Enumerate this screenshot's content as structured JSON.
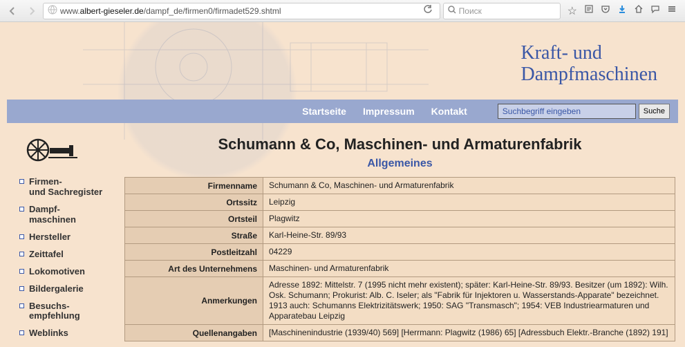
{
  "browser": {
    "url_prefix": "www.",
    "url_domain": "albert-gieseler.de",
    "url_path": "/dampf_de/firmen0/firmadet529.shtml",
    "search_placeholder": "Поиск"
  },
  "site": {
    "title_line1": "Kraft- und",
    "title_line2": "Dampfmaschinen"
  },
  "nav": {
    "items": [
      {
        "label": "Startseite"
      },
      {
        "label": "Impressum"
      },
      {
        "label": "Kontakt"
      }
    ],
    "search_placeholder": "Suchbegriff eingeben",
    "search_button": "Suche"
  },
  "sidebar": {
    "items": [
      {
        "label": "Firmen-und Sachregister"
      },
      {
        "label": "Dampf-maschinen"
      },
      {
        "label": "Hersteller"
      },
      {
        "label": "Zeittafel"
      },
      {
        "label": "Lokomotiven"
      },
      {
        "label": "Bildergalerie"
      },
      {
        "label": "Besuchs-empfehlung"
      },
      {
        "label": "Weblinks"
      }
    ]
  },
  "main": {
    "title": "Schumann & Co, Maschinen- und Armaturenfabrik",
    "subtitle": "Allgemeines",
    "rows": [
      {
        "label": "Firmenname",
        "value": "Schumann & Co, Maschinen- und Armaturenfabrik"
      },
      {
        "label": "Ortssitz",
        "value": "Leipzig"
      },
      {
        "label": "Ortsteil",
        "value": "Plagwitz"
      },
      {
        "label": "Straße",
        "value": "Karl-Heine-Str. 89/93"
      },
      {
        "label": "Postleitzahl",
        "value": "04229"
      },
      {
        "label": "Art des Unternehmens",
        "value": "Maschinen- und Armaturenfabrik"
      },
      {
        "label": "Anmerkungen",
        "value": "Adresse 1892: Mittelstr. 7 (1995 nicht mehr existent); später: Karl-Heine-Str. 89/93. Besitzer (um 1892): Wilh. Osk. Schumann; Prokurist: Alb. C. Iseler; als \"Fabrik für Injektoren u. Wasserstands-Apparate\" bezeichnet. 1913 auch: Schumanns Elektrizitätswerk; 1950: SAG \"Transmasch\"; 1954: VEB Industriearmaturen und Apparatebau Leipzig"
      },
      {
        "label": "Quellenangaben",
        "value": "[Maschinenindustrie (1939/40) 569] [Herrmann: Plagwitz (1986) 65] [Adressbuch Elektr.-Branche (1892) 191]"
      }
    ]
  }
}
